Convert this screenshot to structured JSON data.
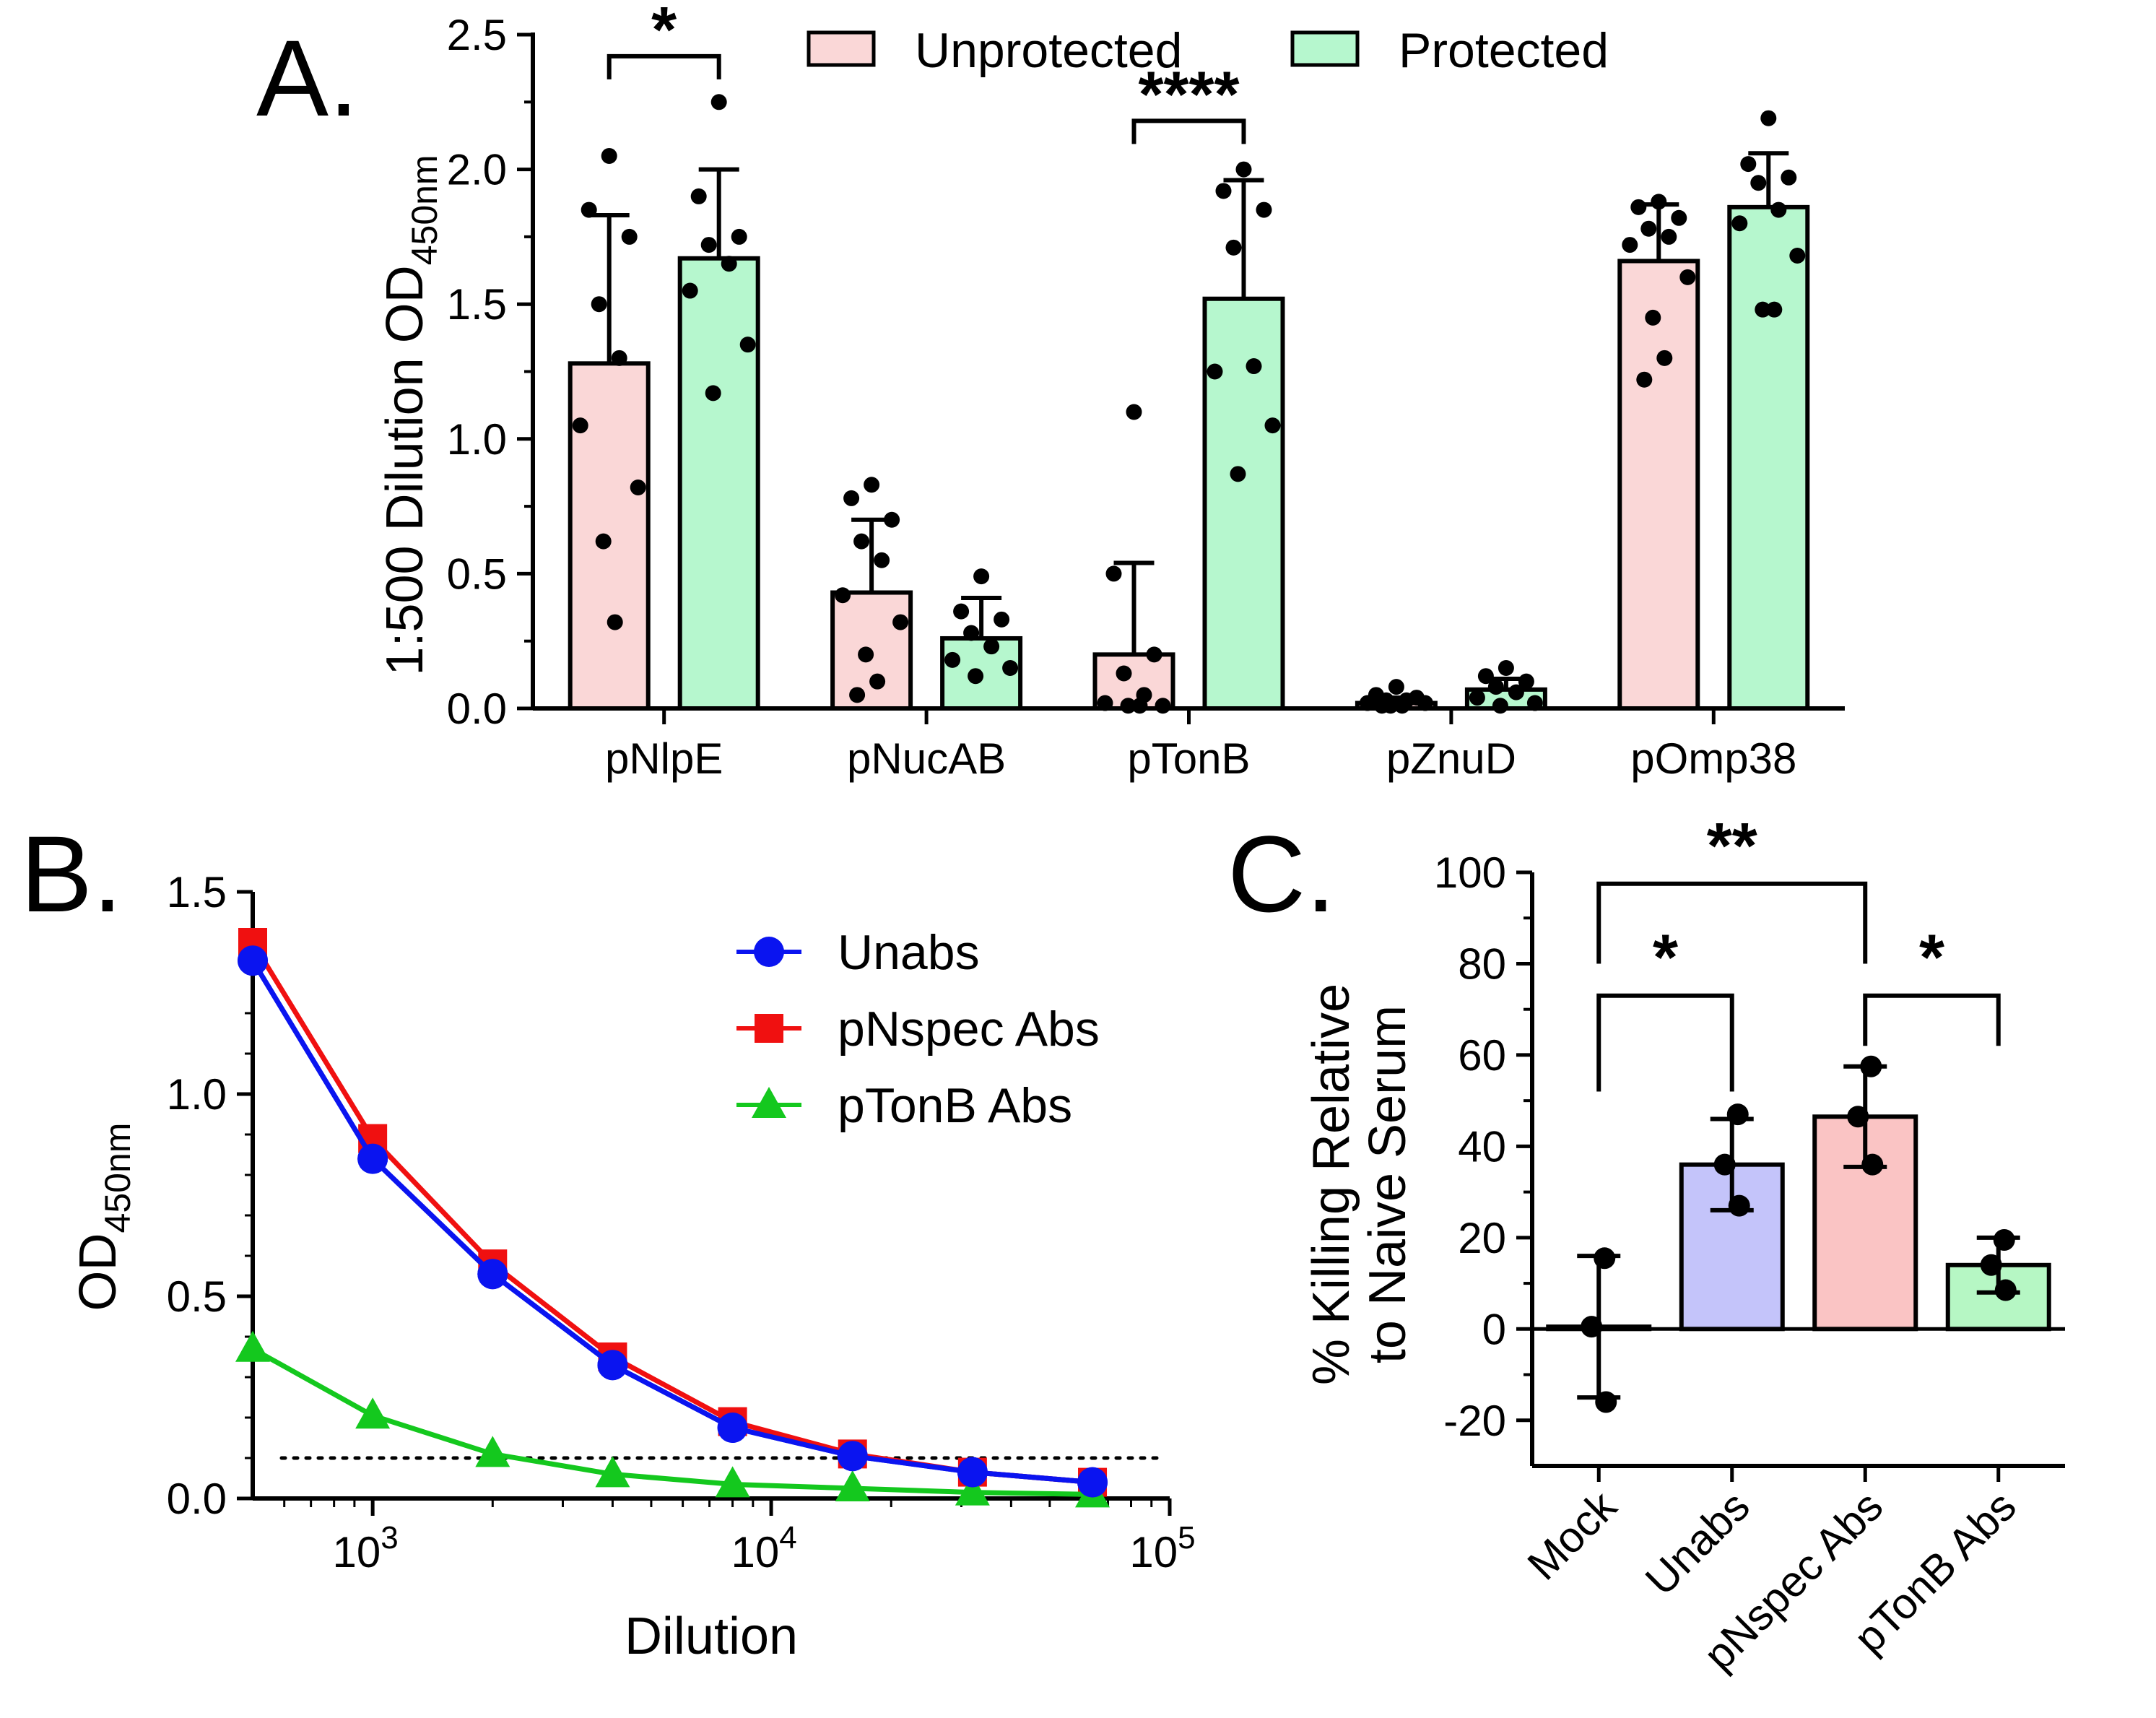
{
  "chart_data": [
    {
      "panel": "A.",
      "type": "bar",
      "title": "",
      "xlabel": "",
      "ylabel": "1:500 Dilution OD",
      "ylabel_sub": "450nm",
      "ylim": [
        0,
        2.5
      ],
      "yticks": [
        "0.0",
        "0.5",
        "1.0",
        "1.5",
        "2.0",
        "2.5"
      ],
      "categories": [
        "pNlpE",
        "pNucAB",
        "pTonB",
        "pZnuD",
        "pOmp38"
      ],
      "legend": {
        "position": "top",
        "entries": [
          "Unprotected",
          "Protected"
        ]
      },
      "series": [
        {
          "name": "Unprotected",
          "color": "#FAD7D7",
          "values": [
            1.28,
            0.43,
            0.2,
            0.02,
            1.66
          ],
          "error": [
            0.55,
            0.27,
            0.34,
            0.02,
            0.21
          ],
          "points": [
            [
              2.05,
              1.85,
              1.75,
              1.5,
              1.3,
              1.05,
              0.82,
              0.62,
              0.32
            ],
            [
              0.83,
              0.78,
              0.7,
              0.62,
              0.55,
              0.42,
              0.32,
              0.2,
              0.1,
              0.05
            ],
            [
              1.1,
              0.5,
              0.2,
              0.13,
              0.05,
              0.02,
              0.01,
              0.01,
              0.01
            ],
            [
              0.08,
              0.05,
              0.04,
              0.03,
              0.03,
              0.02,
              0.02,
              0.01,
              0.01,
              0.01
            ],
            [
              1.88,
              1.86,
              1.82,
              1.78,
              1.75,
              1.72,
              1.6,
              1.45,
              1.3,
              1.22
            ]
          ]
        },
        {
          "name": "Protected",
          "color": "#B6F7CE",
          "values": [
            1.67,
            0.26,
            1.52,
            0.07,
            1.86
          ],
          "error": [
            0.33,
            0.15,
            0.44,
            0.04,
            0.2
          ],
          "points": [
            [
              2.25,
              1.9,
              1.75,
              1.72,
              1.65,
              1.55,
              1.35,
              1.17
            ],
            [
              0.49,
              0.36,
              0.33,
              0.28,
              0.23,
              0.18,
              0.15,
              0.12
            ],
            [
              2.0,
              1.92,
              1.85,
              1.71,
              1.27,
              1.25,
              1.05,
              0.87
            ],
            [
              0.15,
              0.12,
              0.1,
              0.08,
              0.06,
              0.04,
              0.02,
              0.01
            ],
            [
              2.19,
              2.02,
              1.97,
              1.95,
              1.85,
              1.8,
              1.68,
              1.48,
              1.48
            ]
          ]
        }
      ],
      "significance": [
        {
          "category": "pNlpE",
          "label": "*"
        },
        {
          "category": "pTonB",
          "label": "****"
        }
      ]
    },
    {
      "panel": "B.",
      "type": "line",
      "title": "",
      "xlabel": "Dilution",
      "ylabel": "OD",
      "ylabel_sub": "450nm",
      "xscale": "log",
      "xlim": [
        500,
        100000
      ],
      "ylim": [
        0,
        1.5
      ],
      "yticks": [
        "0.0",
        "0.5",
        "1.0",
        "1.5"
      ],
      "xticks": [
        {
          "value": 1000,
          "base": "10",
          "exp": "3"
        },
        {
          "value": 10000,
          "base": "10",
          "exp": "4"
        },
        {
          "value": 100000,
          "base": "10",
          "exp": "5"
        }
      ],
      "threshold": 0.1,
      "legend": {
        "position": "top-right",
        "entries": [
          "Unabs",
          "pNspec Abs",
          "pTonB Abs"
        ]
      },
      "x": [
        500,
        1000,
        2000,
        4000,
        8000,
        16000,
        32000,
        64000
      ],
      "series": [
        {
          "name": "Unabs",
          "color": "#0A14F0",
          "marker": "circle",
          "values": [
            1.33,
            0.84,
            0.555,
            0.33,
            0.175,
            0.105,
            0.065,
            0.04
          ]
        },
        {
          "name": "pNspec Abs",
          "color": "#F01010",
          "marker": "square",
          "values": [
            1.375,
            0.89,
            0.58,
            0.35,
            0.19,
            0.11,
            0.065,
            0.04
          ]
        },
        {
          "name": "pTonB Abs",
          "color": "#14C81E",
          "marker": "triangle",
          "values": [
            0.37,
            0.205,
            0.11,
            0.06,
            0.035,
            0.025,
            0.015,
            0.01
          ]
        }
      ]
    },
    {
      "panel": "C.",
      "type": "bar",
      "title": "",
      "xlabel": "",
      "ylabel_lines": [
        "% Killing Relative",
        "to Naive Serum"
      ],
      "ylim": [
        -30,
        100
      ],
      "yticks": [
        "-20",
        "0",
        "20",
        "40",
        "60",
        "80",
        "100"
      ],
      "categories": [
        "Mock",
        "Unabs",
        "pNspec Abs",
        "pTonB Abs"
      ],
      "colors": [
        "#FFFFFF",
        "#C4C4FA",
        "#FAC4C4",
        "#B6F7C4"
      ],
      "values": [
        0.5,
        36,
        46.5,
        14
      ],
      "error": [
        15.5,
        10,
        11,
        6
      ],
      "points": [
        [
          15.5,
          0.5,
          -16
        ],
        [
          47,
          36,
          27
        ],
        [
          57.5,
          46.5,
          36
        ],
        [
          19.5,
          14,
          8.5
        ]
      ],
      "significance": [
        {
          "from": "Mock",
          "to": "pNspec Abs",
          "label": "**"
        },
        {
          "from": "Mock",
          "to": "Unabs",
          "label": "*"
        },
        {
          "from": "pNspec Abs",
          "to": "pTonB Abs",
          "label": "*"
        }
      ]
    }
  ]
}
